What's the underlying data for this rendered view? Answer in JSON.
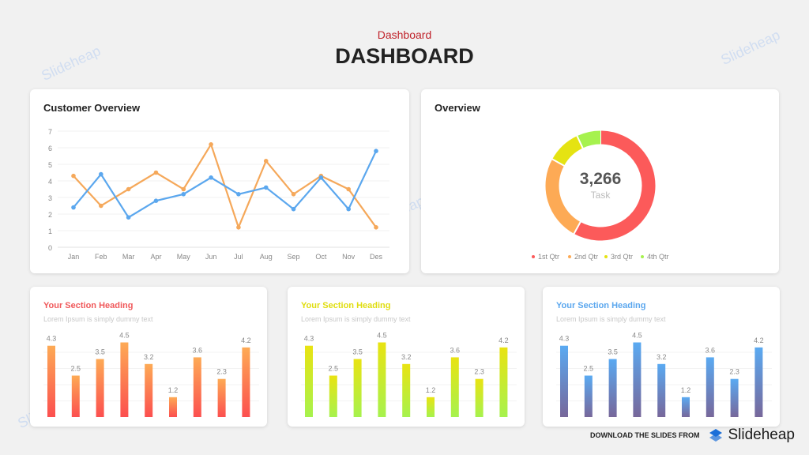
{
  "header": {
    "subtitle": "Dashboard",
    "title": "DASHBOARD"
  },
  "watermark": "Slideheap",
  "footer": {
    "text": "DOWNLOAD THE SLIDES FROM",
    "brand": "Slideheap"
  },
  "colors": {
    "blue": "#5ba7ee",
    "orange": "#f5a85a",
    "red": "#fc5a5a",
    "yellow": "#e5e312",
    "green": "#a6f24e"
  },
  "chart_data": [
    {
      "type": "line",
      "title": "Customer Overview",
      "categories": [
        "Jan",
        "Feb",
        "Mar",
        "Apr",
        "May",
        "Jun",
        "Jul",
        "Aug",
        "Sep",
        "Oct",
        "Nov",
        "Des"
      ],
      "ylim": [
        0,
        7
      ],
      "yticks": [
        0,
        1,
        2,
        3,
        4,
        5,
        6,
        7
      ],
      "grid": true,
      "series": [
        {
          "color": "#5ba7ee",
          "values": [
            2.4,
            4.4,
            1.8,
            2.8,
            3.2,
            4.2,
            3.2,
            3.6,
            2.3,
            4.2,
            2.3,
            5.8
          ]
        },
        {
          "color": "#f5a85a",
          "values": [
            4.3,
            2.5,
            3.5,
            4.5,
            3.5,
            6.2,
            1.2,
            5.2,
            3.2,
            4.3,
            3.5,
            1.2
          ]
        }
      ]
    },
    {
      "type": "pie",
      "title": "Overview",
      "center_value": "3,266",
      "center_label": "Task",
      "legend_position": "bottom",
      "slices": [
        {
          "name": "1st Qtr",
          "value": 58,
          "color": "#fc5a5a"
        },
        {
          "name": "2nd Qtr",
          "value": 25,
          "color": "#fdaa55"
        },
        {
          "name": "3rd Qtr",
          "value": 10,
          "color": "#e5e312"
        },
        {
          "name": "4th Qtr",
          "value": 7,
          "color": "#a6f24e"
        }
      ]
    },
    {
      "type": "bar",
      "heading": "Your Section Heading",
      "description": "Lorem Ipsum is simply dummy text",
      "heading_color": "#f0595b",
      "gradient": [
        "#fdaa55",
        "#fc4f4f"
      ],
      "values": [
        4.3,
        2.5,
        3.5,
        4.5,
        3.2,
        1.2,
        3.6,
        2.3,
        4.2
      ]
    },
    {
      "type": "bar",
      "heading": "Your Section Heading",
      "description": "Lorem Ipsum is simply dummy text",
      "heading_color": "#e0dd10",
      "gradient": [
        "#e9e312",
        "#a6f24e"
      ],
      "values": [
        4.3,
        2.5,
        3.5,
        4.5,
        3.2,
        1.2,
        3.6,
        2.3,
        4.2
      ]
    },
    {
      "type": "bar",
      "heading": "Your Section Heading",
      "description": "Lorem Ipsum is simply dummy text",
      "heading_color": "#5ba7ee",
      "gradient": [
        "#5aaaf2",
        "#77679a"
      ],
      "values": [
        4.3,
        2.5,
        3.5,
        4.5,
        3.2,
        1.2,
        3.6,
        2.3,
        4.2
      ]
    }
  ]
}
